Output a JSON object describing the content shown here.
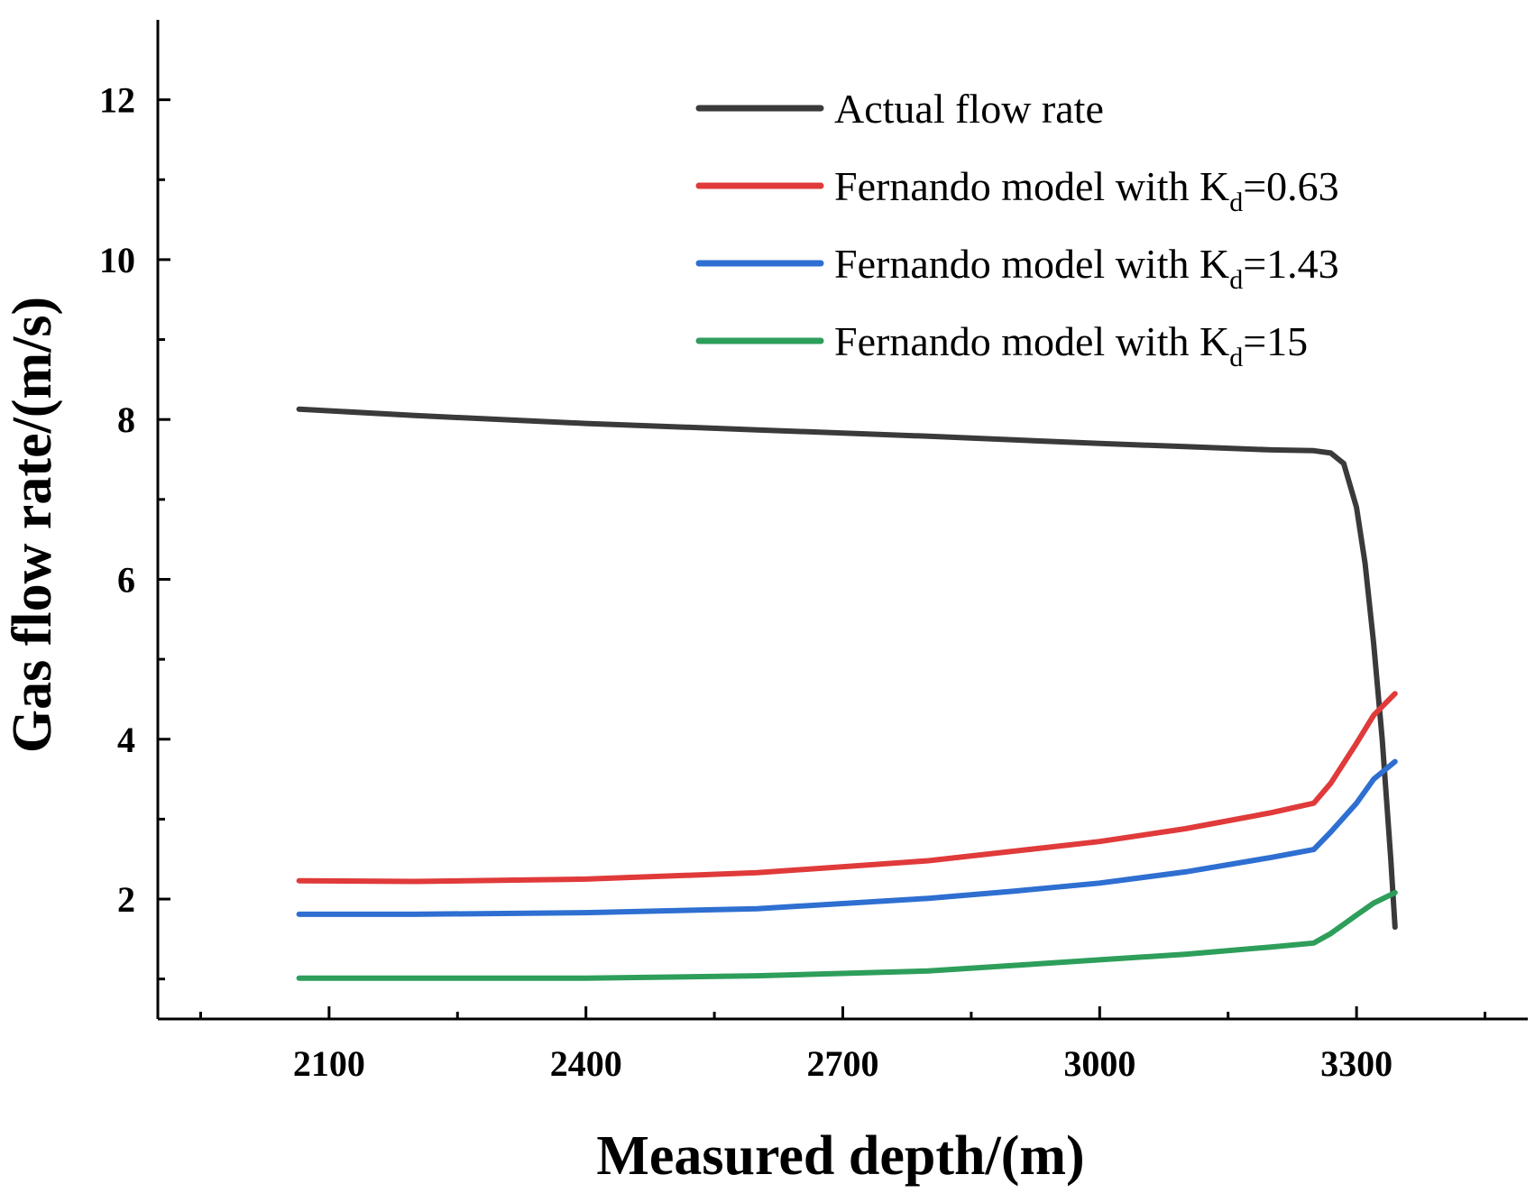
{
  "chart_data": {
    "type": "line",
    "title": "",
    "xlabel": "Measured depth/(m)",
    "ylabel": "Gas flow rate/(m/s)",
    "xlim": [
      1900,
      3500
    ],
    "ylim": [
      0.5,
      13
    ],
    "x_ticks": [
      2100,
      2400,
      2700,
      3000,
      3300
    ],
    "x_tick_labels": [
      "2100",
      "2400",
      "2700",
      "3000",
      "3300"
    ],
    "x_minor_ticks": [
      1950,
      2250,
      2550,
      2850,
      3150,
      3450
    ],
    "y_ticks": [
      2,
      4,
      6,
      8,
      10,
      12
    ],
    "y_tick_labels": [
      "2",
      "4",
      "6",
      "8",
      "10",
      "12"
    ],
    "y_minor_ticks": [
      1,
      3,
      5,
      7,
      9,
      11
    ],
    "grid": false,
    "legend_position": "top-right",
    "series": [
      {
        "name": "Actual flow rate",
        "legend_parts": [
          "Actual flow rate"
        ],
        "color": "#3a3a3a",
        "x": [
          2065,
          2200,
          2400,
          2600,
          2800,
          3000,
          3100,
          3200,
          3250,
          3270,
          3285,
          3300,
          3310,
          3320,
          3330,
          3340,
          3345
        ],
        "y": [
          8.13,
          8.05,
          7.95,
          7.87,
          7.79,
          7.7,
          7.66,
          7.62,
          7.61,
          7.58,
          7.45,
          6.9,
          6.2,
          5.2,
          4.0,
          2.5,
          1.65
        ]
      },
      {
        "name": "Fernando model with Kd=0.63",
        "legend_parts": [
          "Fernando model with K",
          "d",
          "=0.63"
        ],
        "color": "#e03a3a",
        "x": [
          2065,
          2200,
          2400,
          2600,
          2800,
          2900,
          3000,
          3100,
          3200,
          3250,
          3270,
          3300,
          3320,
          3345
        ],
        "y": [
          2.23,
          2.22,
          2.25,
          2.33,
          2.48,
          2.6,
          2.72,
          2.88,
          3.08,
          3.2,
          3.45,
          3.95,
          4.3,
          4.57
        ]
      },
      {
        "name": "Fernando model with Kd=1.43",
        "legend_parts": [
          "Fernando model with K",
          "d",
          "=1.43"
        ],
        "color": "#2e6fd1",
        "x": [
          2065,
          2200,
          2400,
          2600,
          2800,
          2900,
          3000,
          3100,
          3200,
          3250,
          3270,
          3300,
          3320,
          3345
        ],
        "y": [
          1.81,
          1.81,
          1.83,
          1.88,
          2.01,
          2.1,
          2.2,
          2.34,
          2.52,
          2.62,
          2.84,
          3.2,
          3.5,
          3.72
        ]
      },
      {
        "name": "Fernando model with Kd=15",
        "legend_parts": [
          "Fernando model with K",
          "d",
          "=15"
        ],
        "color": "#2e9e5b",
        "x": [
          2065,
          2200,
          2400,
          2600,
          2800,
          2900,
          3000,
          3100,
          3200,
          3250,
          3270,
          3300,
          3320,
          3345
        ],
        "y": [
          1.01,
          1.01,
          1.01,
          1.04,
          1.1,
          1.17,
          1.24,
          1.31,
          1.4,
          1.45,
          1.57,
          1.8,
          1.95,
          2.08
        ]
      }
    ]
  }
}
